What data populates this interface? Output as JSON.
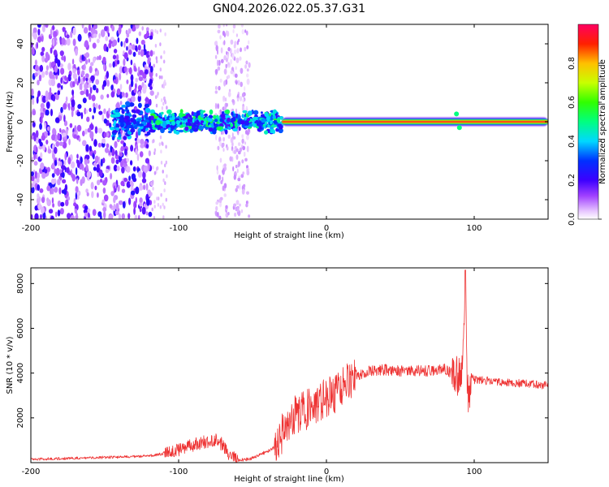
{
  "title": "GN04.2026.022.05.37.G31",
  "chart_data": [
    {
      "type": "heatmap",
      "xlabel": "Height of straight line (km)",
      "ylabel": "Frequency (Hz)",
      "xlim": [
        -200,
        150
      ],
      "ylim": [
        -50,
        50
      ],
      "xticks": [
        -200,
        -100,
        0,
        100
      ],
      "xtick_labels": [
        "-200",
        "-100",
        "0",
        "100"
      ],
      "yticks": [
        -40,
        -20,
        0,
        20,
        40
      ],
      "ytick_labels": [
        "-40",
        "-20",
        "0",
        "20",
        "40"
      ],
      "colorbar": {
        "label": "Normalized spectral amplitude",
        "range": [
          0,
          1
        ],
        "ticks": [
          0.0,
          0.2,
          0.4,
          0.6,
          0.8
        ],
        "tick_labels": [
          "0.0",
          "0.2",
          "0.4",
          "0.6",
          "0.8"
        ]
      },
      "features": [
        {
          "name": "scattered noise",
          "x_range": [
            -200,
            -118
          ],
          "freq_range": [
            -50,
            50
          ],
          "amplitude": 0.1
        },
        {
          "name": "noise column",
          "x_range": [
            -75,
            -52
          ],
          "freq_range": [
            -50,
            50
          ],
          "amplitude": 0.05
        },
        {
          "name": "noisy band",
          "x_range": [
            -145,
            -30
          ],
          "freq_center": 0,
          "amplitude": 0.35
        },
        {
          "name": "signal line",
          "x_range": [
            -30,
            150
          ],
          "freq_center": 0,
          "amplitude": 0.95
        }
      ]
    },
    {
      "type": "line",
      "xlabel": "Height of straight line (km)",
      "ylabel": "SNR (10 * v/v)",
      "xlim": [
        -200,
        150
      ],
      "ylim": [
        0,
        8700
      ],
      "xticks": [
        -200,
        -100,
        0,
        100
      ],
      "xtick_labels": [
        "-200",
        "-100",
        "0",
        "100"
      ],
      "yticks": [
        2000,
        4000,
        6000,
        8000
      ],
      "ytick_labels": [
        "2000",
        "4000",
        "6000",
        "8000"
      ],
      "color": "#ee3333",
      "series": [
        {
          "name": "SNR",
          "x": [
            -200,
            -180,
            -160,
            -140,
            -120,
            -110,
            -100,
            -90,
            -80,
            -75,
            -70,
            -65,
            -60,
            -50,
            -40,
            -35,
            -30,
            -25,
            -20,
            -15,
            -10,
            -5,
            0,
            5,
            10,
            15,
            20,
            30,
            40,
            50,
            60,
            70,
            80,
            85,
            88,
            90,
            92,
            93,
            94,
            95,
            96,
            98,
            100,
            110,
            120,
            130,
            140,
            150
          ],
          "y": [
            150,
            180,
            220,
            250,
            300,
            400,
            550,
            800,
            950,
            1000,
            800,
            300,
            100,
            200,
            500,
            700,
            1300,
            1800,
            2200,
            2300,
            2500,
            2700,
            2900,
            3000,
            3400,
            3700,
            3900,
            4100,
            4150,
            4100,
            4100,
            4100,
            4200,
            4000,
            3900,
            3800,
            4500,
            5500,
            8600,
            4000,
            2800,
            3900,
            3700,
            3650,
            3600,
            3550,
            3500,
            3450
          ]
        }
      ]
    }
  ]
}
